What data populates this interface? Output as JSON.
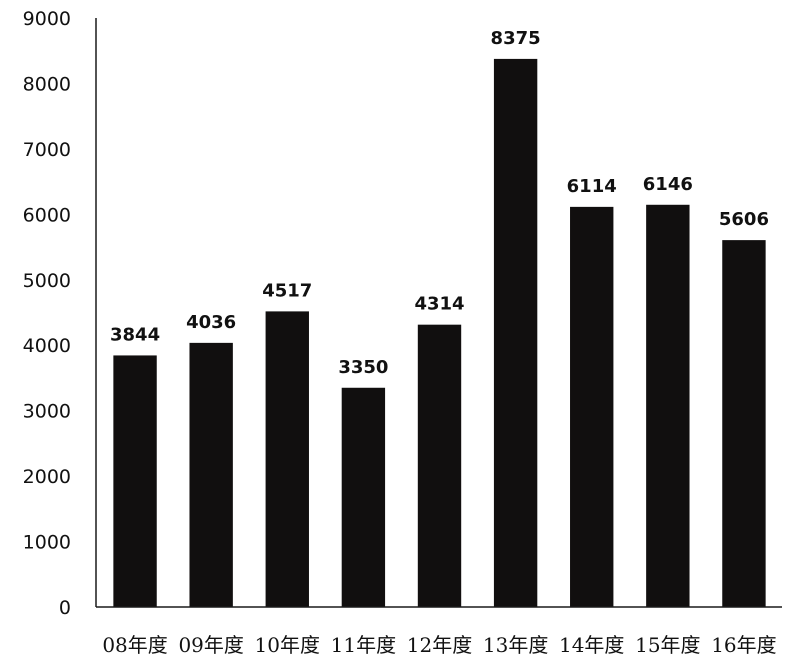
{
  "chart_data": {
    "type": "bar",
    "categories": [
      "08年度",
      "09年度",
      "10年度",
      "11年度",
      "12年度",
      "13年度",
      "14年度",
      "15年度",
      "16年度"
    ],
    "values": [
      3844,
      4036,
      4517,
      3350,
      4314,
      8375,
      6114,
      6146,
      5606
    ],
    "data_labels": [
      "3844",
      "4036",
      "4517",
      "3350",
      "4314",
      "8375",
      "6114",
      "6146",
      "5606"
    ],
    "title": "",
    "xlabel": "",
    "ylabel": "",
    "ylim": [
      0,
      9000
    ],
    "yticks": [
      "0",
      "1000",
      "2000",
      "3000",
      "4000",
      "5000",
      "6000",
      "7000",
      "8000",
      "9000"
    ],
    "grid": false,
    "legend": "none",
    "bar_color": "#110f0f"
  }
}
